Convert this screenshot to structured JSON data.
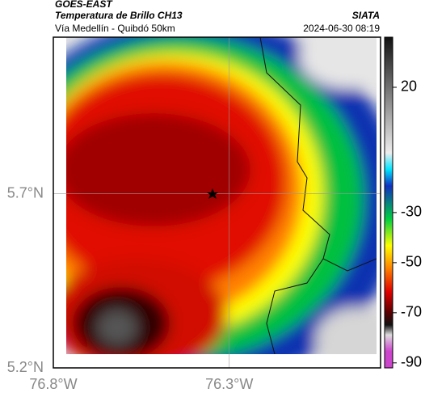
{
  "header": {
    "source": "GOES-EAST",
    "title": "Temperatura de Brillo CH13",
    "subtitle": "Vía Medellín - Quibdó 50km",
    "agency": "SIATA",
    "timestamp": "2024-06-30 08:19"
  },
  "map": {
    "lon_lim": [
      -76.8,
      -75.87
    ],
    "lat_lim": [
      5.2,
      6.15
    ],
    "lon_ticks": [
      {
        "value": -76.8,
        "label": "76.8°W"
      },
      {
        "value": -76.3,
        "label": "76.3°W"
      }
    ],
    "lat_ticks": [
      {
        "value": 5.7,
        "label": "5.7°N"
      },
      {
        "value": 5.2,
        "label": "5.2°N"
      }
    ]
  },
  "colorbar": {
    "lim": [
      -92,
      40
    ],
    "ticks": [
      20,
      -30,
      -50,
      -70,
      -90
    ]
  }
}
